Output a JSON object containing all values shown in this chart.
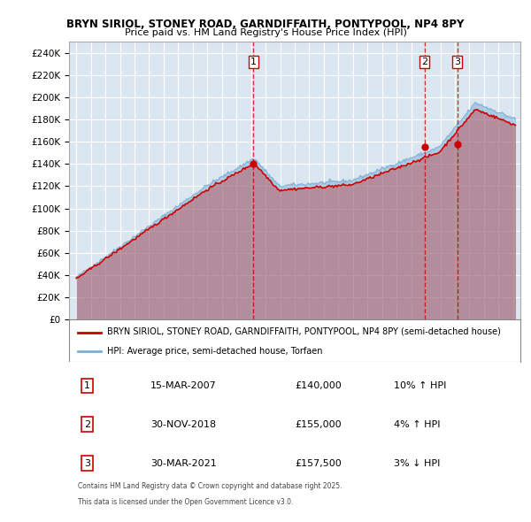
{
  "title_line1": "BRYN SIRIOL, STONEY ROAD, GARNDIFFAITH, PONTYPOOL, NP4 8PY",
  "title_line2": "Price paid vs. HM Land Registry's House Price Index (HPI)",
  "ylabel": "",
  "xlabel": "",
  "ylim": [
    0,
    250000
  ],
  "yticks": [
    0,
    20000,
    40000,
    60000,
    80000,
    100000,
    120000,
    140000,
    160000,
    180000,
    200000,
    220000,
    240000
  ],
  "ytick_labels": [
    "£0",
    "£20K",
    "£40K",
    "£60K",
    "£80K",
    "£100K",
    "£120K",
    "£140K",
    "£160K",
    "£180K",
    "£200K",
    "£220K",
    "£240K"
  ],
  "background_color": "#dce6f1",
  "plot_bg_color": "#dce6f1",
  "grid_color": "#ffffff",
  "hpi_color": "#7bafd4",
  "price_color": "#cc0000",
  "sale_marker_color": "#cc0000",
  "vline_color": "#cc0000",
  "vline_style": "--",
  "legend_border_color": "#888888",
  "sale1_date": "15-MAR-2007",
  "sale1_price": 140000,
  "sale1_hpi_pct": "10%",
  "sale1_direction": "↑",
  "sale2_date": "30-NOV-2018",
  "sale2_price": 155000,
  "sale2_hpi_pct": "4%",
  "sale2_direction": "↑",
  "sale3_date": "30-MAR-2021",
  "sale3_price": 157500,
  "sale3_hpi_pct": "3%",
  "sale3_direction": "↓",
  "footer_line1": "Contains HM Land Registry data © Crown copyright and database right 2025.",
  "footer_line2": "This data is licensed under the Open Government Licence v3.0.",
  "legend_label_price": "BRYN SIRIOL, STONEY ROAD, GARNDIFFAITH, PONTYPOOL, NP4 8PY (semi-detached house)",
  "legend_label_hpi": "HPI: Average price, semi-detached house, Torfaen"
}
